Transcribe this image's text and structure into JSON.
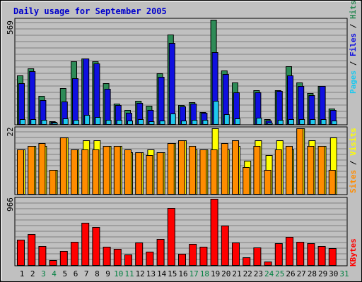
{
  "chart_data": [
    {
      "type": "bar",
      "title": "Daily usage for September 2005",
      "categories": [
        "1",
        "2",
        "3",
        "4",
        "5",
        "6",
        "7",
        "8",
        "9",
        "10",
        "11",
        "12",
        "13",
        "14",
        "15",
        "16",
        "17",
        "18",
        "19",
        "20",
        "21",
        "22",
        "23",
        "24",
        "25",
        "26",
        "27",
        "28",
        "29",
        "30",
        "31"
      ],
      "weekend_days": [
        "3",
        "4",
        "10",
        "11",
        "17",
        "18",
        "24",
        "25",
        "31"
      ],
      "y_max_label": "569",
      "ylim": [
        0,
        569
      ],
      "legend": [
        "Pages",
        "Files",
        "Hits"
      ],
      "series": [
        {
          "name": "Hits",
          "color": "#2e8b57",
          "values": [
            265,
            305,
            152,
            16,
            197,
            343,
            356,
            341,
            223,
            110,
            78,
            128,
            99,
            278,
            488,
            105,
            120,
            67,
            569,
            291,
            228,
            0,
            186,
            26,
            185,
            316,
            228,
            168,
            208,
            85,
            0
          ]
        },
        {
          "name": "Files",
          "color": "#1010e0",
          "values": [
            224,
            288,
            131,
            10,
            124,
            250,
            356,
            329,
            192,
            104,
            63,
            117,
            77,
            256,
            443,
            98,
            112,
            61,
            391,
            272,
            172,
            0,
            172,
            18,
            181,
            267,
            209,
            157,
            206,
            76,
            0
          ]
        },
        {
          "name": "Pages",
          "color": "#1ec8ee",
          "values": [
            25,
            27,
            24,
            6,
            31,
            24,
            51,
            39,
            24,
            22,
            20,
            25,
            15,
            21,
            57,
            21,
            22,
            22,
            126,
            54,
            32,
            0,
            36,
            6,
            22,
            27,
            27,
            27,
            27,
            20,
            0
          ]
        }
      ]
    },
    {
      "type": "bar",
      "y_max_label": "22",
      "ylim": [
        0,
        22
      ],
      "legend": [
        "Sites",
        "Visits"
      ],
      "series": [
        {
          "name": "Visits",
          "color": "#ffff00",
          "values": [
            15,
            16,
            16,
            8,
            19,
            15,
            18,
            18,
            16,
            16,
            14,
            14,
            15,
            14,
            17,
            18,
            15,
            15,
            22,
            15,
            16,
            11,
            18,
            13,
            18,
            15,
            22,
            18,
            16,
            19,
            0
          ]
        },
        {
          "name": "Sites",
          "color": "#ff8c00",
          "values": [
            15,
            16,
            17,
            8,
            19,
            15,
            15,
            15,
            16,
            16,
            15,
            14,
            13,
            14,
            17,
            18,
            16,
            15,
            15,
            17,
            18,
            9,
            16,
            8,
            15,
            16,
            22,
            16,
            16,
            8,
            0
          ]
        }
      ]
    },
    {
      "type": "bar",
      "y_max_label": "966",
      "ylim": [
        0,
        966
      ],
      "legend": [
        "KBytes"
      ],
      "series": [
        {
          "name": "KBytes",
          "color": "#ff0000",
          "values": [
            370,
            448,
            278,
            74,
            210,
            344,
            614,
            557,
            268,
            237,
            152,
            331,
            196,
            379,
            830,
            166,
            307,
            269,
            966,
            575,
            330,
            113,
            260,
            55,
            317,
            414,
            337,
            319,
            279,
            244,
            0
          ]
        }
      ]
    }
  ]
}
